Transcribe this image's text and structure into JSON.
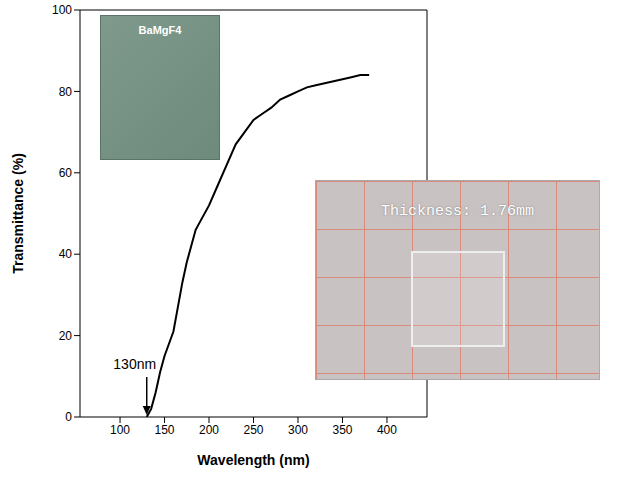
{
  "chart_data": {
    "type": "line",
    "x_label": "Wavelength (nm)",
    "y_label": "Transmittance (%)",
    "xlim": [
      55,
      445
    ],
    "xticks": [
      100,
      150,
      200,
      250,
      300,
      350,
      400
    ],
    "ylim": [
      0,
      100
    ],
    "yticks": [
      0,
      20,
      40,
      60,
      80,
      100
    ],
    "grid": false,
    "series": [
      {
        "name": "BaMgF4",
        "color": "#000000",
        "x": [
          130,
          135,
          140,
          145,
          150,
          155,
          160,
          165,
          170,
          175,
          180,
          185,
          190,
          200,
          210,
          220,
          230,
          240,
          250,
          260,
          270,
          280,
          290,
          300,
          310,
          320,
          330,
          340,
          350,
          360,
          370,
          380
        ],
        "values": [
          0,
          2,
          6,
          11,
          15,
          18,
          21,
          27,
          33,
          38,
          42,
          46,
          48,
          52,
          57,
          62,
          67,
          70,
          73,
          74.5,
          76,
          78,
          79,
          80,
          81,
          81.5,
          82,
          82.5,
          83,
          83.5,
          84,
          84
        ]
      }
    ],
    "annotations": [
      {
        "text": "130nm",
        "x": 130,
        "y": 0
      }
    ],
    "insets": [
      {
        "text": "BaMgF4"
      },
      {
        "text": "Thickness: 1.76mm"
      }
    ]
  }
}
